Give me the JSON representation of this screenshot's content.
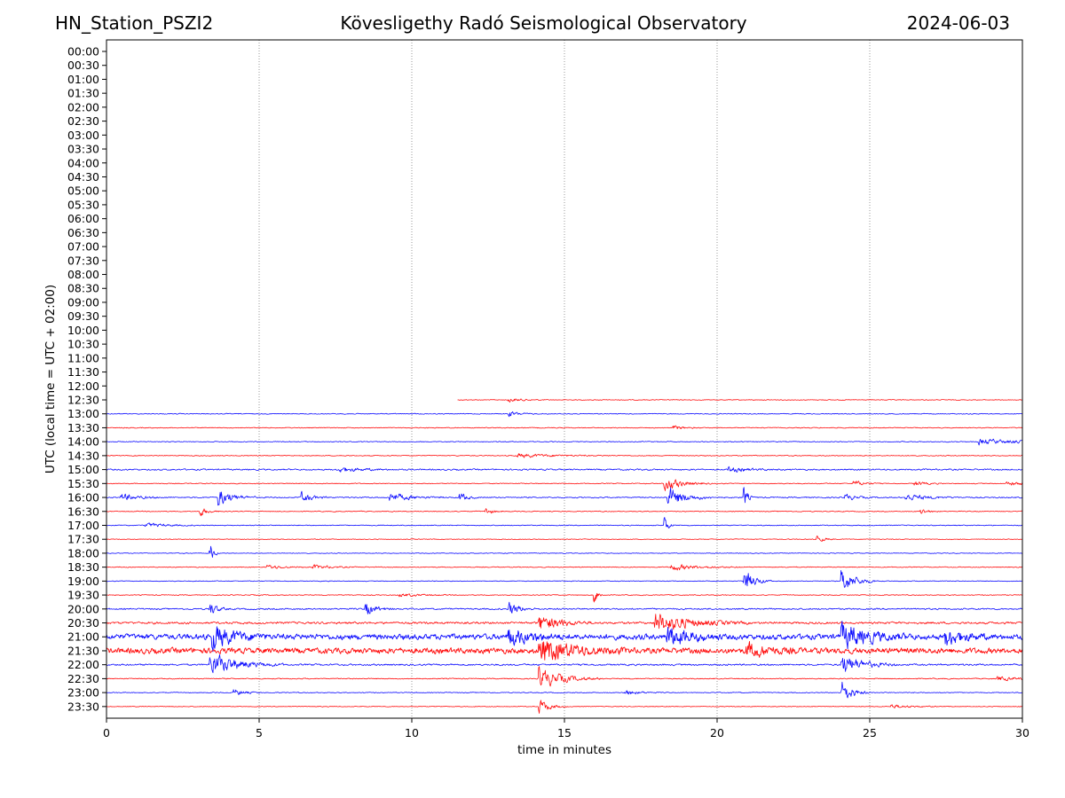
{
  "header": {
    "station": "HN_Station_PSZI2",
    "observatory": "Kövesligethy Radó Seismological Observatory",
    "date": "2024-06-03"
  },
  "colors": {
    "trace_a": "#0000ff",
    "trace_b": "#ff0000",
    "grid": "#555555",
    "frame": "#000000"
  },
  "chart_data": {
    "type": "line",
    "title": "Kövesligethy Radó Seismological Observatory",
    "subtitle_left": "HN_Station_PSZI2",
    "subtitle_right": "2024-06-03",
    "xlabel": "time in minutes",
    "ylabel": "UTC (local time = UTC + 02:00)",
    "xlim": [
      0,
      30
    ],
    "x_ticks": [
      0,
      5,
      10,
      15,
      20,
      25,
      30
    ],
    "x_grid": "vertical dotted lines at 5-minute intervals",
    "y_ticks": [
      "00:00",
      "00:30",
      "01:00",
      "01:30",
      "02:00",
      "02:30",
      "03:00",
      "03:30",
      "04:00",
      "04:30",
      "05:00",
      "05:30",
      "06:00",
      "06:30",
      "07:00",
      "07:30",
      "08:00",
      "08:30",
      "09:00",
      "09:30",
      "10:00",
      "10:30",
      "11:00",
      "11:30",
      "12:00",
      "12:30",
      "13:00",
      "13:30",
      "14:00",
      "14:30",
      "15:00",
      "15:30",
      "16:00",
      "16:30",
      "17:00",
      "17:30",
      "18:00",
      "18:30",
      "19:00",
      "19:30",
      "20:00",
      "20:30",
      "21:00",
      "21:30",
      "22:00",
      "22:30",
      "23:00",
      "23:30"
    ],
    "legend": "none",
    "trace_colors_alternate": [
      "#0000ff",
      "#ff0000"
    ],
    "data_start": {
      "row": "12:30",
      "minute": 11.5
    },
    "rows": [
      {
        "label": "12:30",
        "color": "#ff0000",
        "start": 11.5,
        "noise": 0.3,
        "events": [
          {
            "t": 13.2,
            "amp": 0.6,
            "dur": 0.4
          }
        ]
      },
      {
        "label": "13:00",
        "color": "#0000ff",
        "start": 0,
        "noise": 0.35,
        "events": [
          {
            "t": 13.2,
            "amp": 0.8,
            "dur": 0.3
          }
        ]
      },
      {
        "label": "13:30",
        "color": "#ff0000",
        "start": 0,
        "noise": 0.35,
        "events": [
          {
            "t": 18.6,
            "amp": 0.6,
            "dur": 0.3
          }
        ]
      },
      {
        "label": "14:00",
        "color": "#0000ff",
        "start": 0,
        "noise": 0.35,
        "events": [
          {
            "t": 28.6,
            "amp": 0.8,
            "dur": 1.2
          }
        ]
      },
      {
        "label": "14:30",
        "color": "#ff0000",
        "start": 0,
        "noise": 0.35,
        "events": [
          {
            "t": 13.5,
            "amp": 0.6,
            "dur": 1.0
          }
        ]
      },
      {
        "label": "15:00",
        "color": "#0000ff",
        "start": 0,
        "noise": 0.6,
        "events": [
          {
            "t": 7.6,
            "amp": 0.8,
            "dur": 0.6
          },
          {
            "t": 20.4,
            "amp": 0.7,
            "dur": 0.6
          }
        ]
      },
      {
        "label": "15:30",
        "color": "#ff0000",
        "start": 0,
        "noise": 0.35,
        "events": [
          {
            "t": 18.3,
            "amp": 2.0,
            "dur": 0.5
          },
          {
            "t": 24.5,
            "amp": 0.8,
            "dur": 0.3
          },
          {
            "t": 26.5,
            "amp": 0.7,
            "dur": 0.3
          },
          {
            "t": 29.5,
            "amp": 0.7,
            "dur": 0.4
          }
        ]
      },
      {
        "label": "16:00",
        "color": "#0000ff",
        "start": 0,
        "noise": 0.5,
        "events": [
          {
            "t": 0.5,
            "amp": 1.0,
            "dur": 0.5
          },
          {
            "t": 3.7,
            "amp": 2.5,
            "dur": 0.4
          },
          {
            "t": 6.4,
            "amp": 1.5,
            "dur": 0.3
          },
          {
            "t": 9.3,
            "amp": 1.3,
            "dur": 0.6
          },
          {
            "t": 11.6,
            "amp": 1.3,
            "dur": 0.2
          },
          {
            "t": 18.4,
            "amp": 3.0,
            "dur": 0.5
          },
          {
            "t": 20.9,
            "amp": 3.0,
            "dur": 0.1
          },
          {
            "t": 24.2,
            "amp": 1.0,
            "dur": 0.3
          },
          {
            "t": 26.2,
            "amp": 1.0,
            "dur": 0.6
          }
        ]
      },
      {
        "label": "16:30",
        "color": "#ff0000",
        "start": 0,
        "noise": 0.35,
        "events": [
          {
            "t": 3.1,
            "amp": 1.3,
            "dur": 0.2
          },
          {
            "t": 12.4,
            "amp": 1.2,
            "dur": 0.2
          },
          {
            "t": 26.7,
            "amp": 0.8,
            "dur": 0.2
          }
        ]
      },
      {
        "label": "17:00",
        "color": "#0000ff",
        "start": 0,
        "noise": 0.35,
        "events": [
          {
            "t": 1.3,
            "amp": 0.7,
            "dur": 0.6
          },
          {
            "t": 18.3,
            "amp": 2.5,
            "dur": 0.1
          }
        ]
      },
      {
        "label": "17:30",
        "color": "#ff0000",
        "start": 0,
        "noise": 0.3,
        "events": [
          {
            "t": 23.3,
            "amp": 1.0,
            "dur": 0.2
          }
        ]
      },
      {
        "label": "18:00",
        "color": "#0000ff",
        "start": 0,
        "noise": 0.3,
        "events": [
          {
            "t": 3.4,
            "amp": 3.0,
            "dur": 0.1
          }
        ]
      },
      {
        "label": "18:30",
        "color": "#ff0000",
        "start": 0,
        "noise": 0.35,
        "events": [
          {
            "t": 5.3,
            "amp": 0.6,
            "dur": 0.5
          },
          {
            "t": 6.8,
            "amp": 0.6,
            "dur": 0.5
          },
          {
            "t": 18.5,
            "amp": 1.0,
            "dur": 0.8
          }
        ]
      },
      {
        "label": "19:00",
        "color": "#0000ff",
        "start": 0,
        "noise": 0.3,
        "events": [
          {
            "t": 20.9,
            "amp": 3.5,
            "dur": 0.3
          },
          {
            "t": 24.1,
            "amp": 3.5,
            "dur": 0.4
          }
        ]
      },
      {
        "label": "19:30",
        "color": "#ff0000",
        "start": 0,
        "noise": 0.35,
        "events": [
          {
            "t": 9.6,
            "amp": 0.5,
            "dur": 0.6
          },
          {
            "t": 16.0,
            "amp": 2.5,
            "dur": 0.1
          }
        ]
      },
      {
        "label": "20:00",
        "color": "#0000ff",
        "start": 0,
        "noise": 0.6,
        "events": [
          {
            "t": 3.4,
            "amp": 2.0,
            "dur": 0.2
          },
          {
            "t": 8.5,
            "amp": 2.0,
            "dur": 0.3
          },
          {
            "t": 13.2,
            "amp": 2.0,
            "dur": 0.3
          }
        ]
      },
      {
        "label": "20:30",
        "color": "#ff0000",
        "start": 0,
        "noise": 0.9,
        "events": [
          {
            "t": 14.2,
            "amp": 2.5,
            "dur": 0.6
          },
          {
            "t": 18.0,
            "amp": 3.0,
            "dur": 1.0
          }
        ]
      },
      {
        "label": "21:00",
        "color": "#0000ff",
        "start": 0,
        "noise": 2.2,
        "events": [
          {
            "t": 3.5,
            "amp": 3.5,
            "dur": 0.6
          },
          {
            "t": 13.2,
            "amp": 2.5,
            "dur": 0.6
          },
          {
            "t": 18.4,
            "amp": 3.0,
            "dur": 0.6
          },
          {
            "t": 24.1,
            "amp": 3.5,
            "dur": 0.8
          },
          {
            "t": 27.5,
            "amp": 2.5,
            "dur": 0.5
          }
        ]
      },
      {
        "label": "21:30",
        "color": "#ff0000",
        "start": 0,
        "noise": 2.3,
        "events": [
          {
            "t": 14.2,
            "amp": 3.5,
            "dur": 1.0
          },
          {
            "t": 21.0,
            "amp": 2.0,
            "dur": 0.6
          }
        ]
      },
      {
        "label": "22:00",
        "color": "#0000ff",
        "start": 0,
        "noise": 0.7,
        "events": [
          {
            "t": 3.4,
            "amp": 3.5,
            "dur": 0.8
          },
          {
            "t": 24.1,
            "amp": 3.0,
            "dur": 0.6
          }
        ]
      },
      {
        "label": "22:30",
        "color": "#ff0000",
        "start": 0,
        "noise": 0.4,
        "events": [
          {
            "t": 14.2,
            "amp": 3.0,
            "dur": 0.7
          },
          {
            "t": 29.2,
            "amp": 0.6,
            "dur": 0.6
          }
        ]
      },
      {
        "label": "23:00",
        "color": "#0000ff",
        "start": 0,
        "noise": 0.35,
        "events": [
          {
            "t": 4.2,
            "amp": 1.0,
            "dur": 0.3
          },
          {
            "t": 17.0,
            "amp": 0.8,
            "dur": 0.4
          },
          {
            "t": 24.1,
            "amp": 3.5,
            "dur": 0.3
          }
        ]
      },
      {
        "label": "23:30",
        "color": "#ff0000",
        "start": 0,
        "noise": 0.3,
        "events": [
          {
            "t": 14.2,
            "amp": 2.0,
            "dur": 0.3
          },
          {
            "t": 25.7,
            "amp": 0.6,
            "dur": 0.6
          }
        ]
      }
    ]
  }
}
